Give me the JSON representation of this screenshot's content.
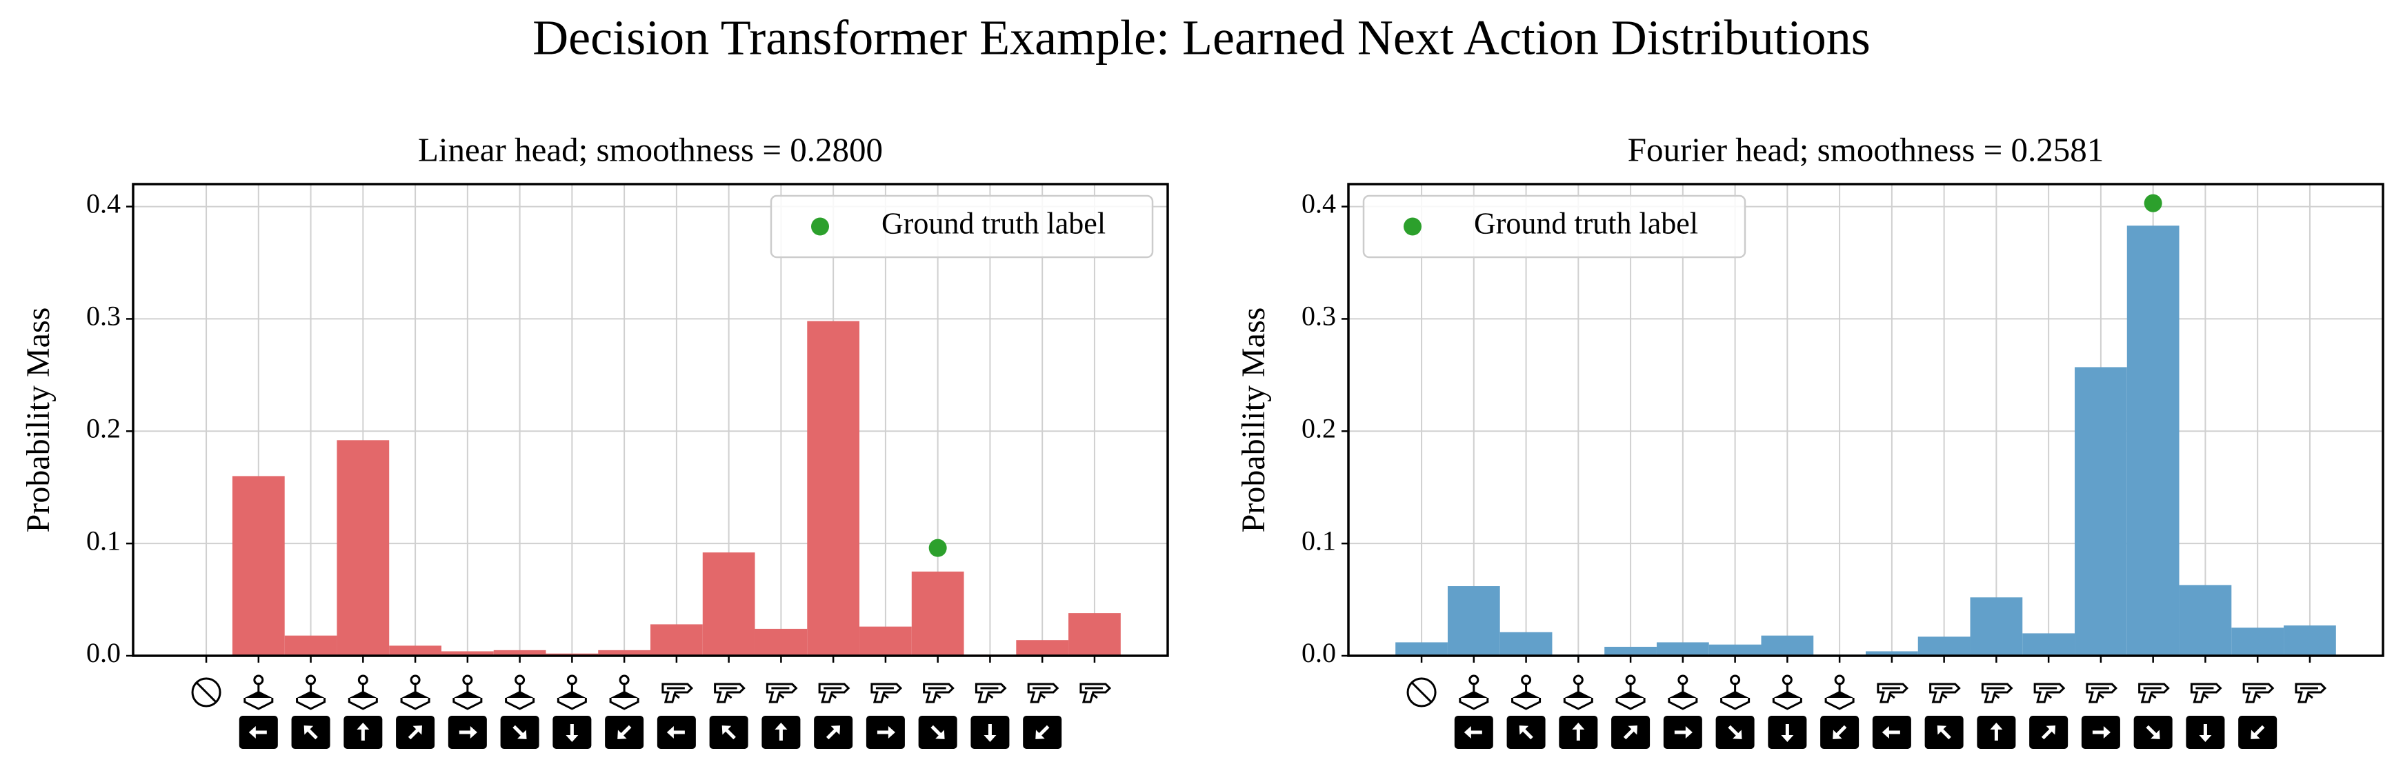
{
  "title": "Decision Transformer Example: Learned Next Action Distributions",
  "chart_data": [
    {
      "type": "bar",
      "title": "Linear head; smoothness = 0.2800",
      "ylabel": "Probability Mass",
      "categories": [
        null,
        null,
        null,
        null,
        null,
        null,
        null,
        null,
        null,
        null,
        null,
        null,
        null,
        null,
        null,
        null,
        null,
        null
      ],
      "values": [
        0,
        0.16,
        0.018,
        0.192,
        0.009,
        0.004,
        0.005,
        0.002,
        0.005,
        0.028,
        0.092,
        0.024,
        0.298,
        0.026,
        0.075,
        0.001,
        0.014,
        0.038
      ],
      "color": "#e3686a",
      "series": [
        {
          "name": "Ground truth label",
          "type": "scatter",
          "color": "#2ca02c",
          "x": [
            14
          ],
          "values": [
            0.096
          ]
        }
      ],
      "xlim": [
        -1.4,
        18.4
      ],
      "xticks": [
        0,
        1,
        2,
        3,
        4,
        5,
        6,
        7,
        8,
        9,
        10,
        11,
        12,
        13,
        14,
        15,
        16,
        17
      ],
      "ylim": [
        0,
        0.42
      ],
      "yticks": [
        {
          "value": 0,
          "label": "0.0"
        },
        0.1,
        0.2,
        0.3,
        0.4
      ],
      "grid": true,
      "legend": "upper right"
    },
    {
      "type": "bar",
      "title": "Fourier head; smoothness = 0.2581",
      "ylabel": "Probability Mass",
      "categories": [
        null,
        null,
        null,
        null,
        null,
        null,
        null,
        null,
        null,
        null,
        null,
        null,
        null,
        null,
        null,
        null,
        null,
        null
      ],
      "values": [
        0.012,
        0.062,
        0.021,
        0.001,
        0.008,
        0.012,
        0.01,
        0.018,
        0.001,
        0.004,
        0.017,
        0.052,
        0.02,
        0.257,
        0.383,
        0.063,
        0.025,
        0.027
      ],
      "color": "#62a0ca",
      "series": [
        {
          "name": "Ground truth label",
          "type": "scatter",
          "color": "#2ca02c",
          "x": [
            14
          ],
          "values": [
            0.403
          ]
        }
      ],
      "xlim": [
        -1.4,
        18.4
      ],
      "xticks": [
        0,
        1,
        2,
        3,
        4,
        5,
        6,
        7,
        8,
        9,
        10,
        11,
        12,
        13,
        14,
        15,
        16,
        17
      ],
      "ylim": [
        0,
        0.42
      ],
      "yticks": [
        {
          "value": 0,
          "label": "0.0"
        },
        0.1,
        0.2,
        0.3,
        0.4
      ],
      "grid": true,
      "legend": "upper left"
    }
  ]
}
